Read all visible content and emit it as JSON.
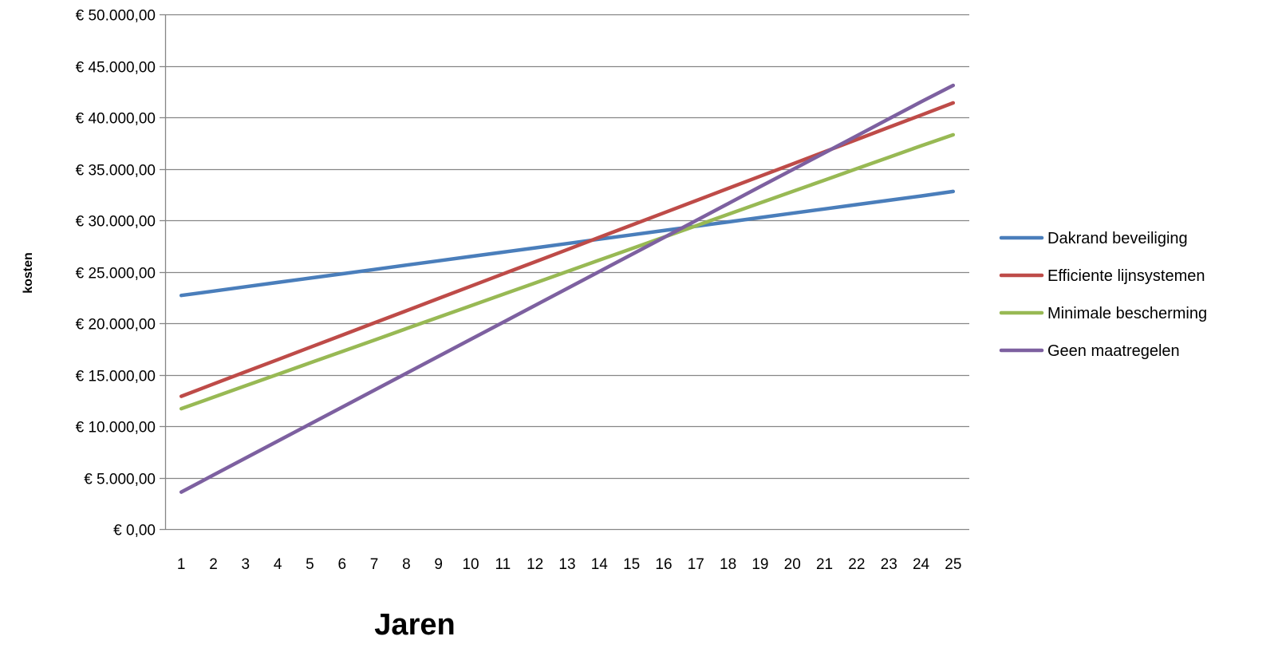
{
  "chart_data": {
    "type": "line",
    "title": "",
    "xlabel": "Jaren",
    "ylabel": "kosten",
    "ylim": [
      0,
      50000
    ],
    "yticks": [
      0,
      5000,
      10000,
      15000,
      20000,
      25000,
      30000,
      35000,
      40000,
      45000,
      50000
    ],
    "ytick_labels": [
      "€ 0,00",
      "€ 5.000,00",
      "€ 10.000,00",
      "€ 15.000,00",
      "€ 20.000,00",
      "€ 25.000,00",
      "€ 30.000,00",
      "€ 35.000,00",
      "€ 40.000,00",
      "€ 45.000,00",
      "€ 50.000,00"
    ],
    "x": [
      1,
      2,
      3,
      4,
      5,
      6,
      7,
      8,
      9,
      10,
      11,
      12,
      13,
      14,
      15,
      16,
      17,
      18,
      19,
      20,
      21,
      22,
      23,
      24,
      25
    ],
    "grid": "horizontal",
    "legend_position": "right",
    "series": [
      {
        "name": "Dakrand beveiliging",
        "color": "#4a7ebb",
        "values": [
          22700,
          23120,
          23540,
          23960,
          24380,
          24800,
          25220,
          25640,
          26060,
          26480,
          26900,
          27320,
          27740,
          28160,
          28580,
          29000,
          29420,
          29840,
          30260,
          30680,
          31100,
          31520,
          31940,
          32360,
          32800
        ]
      },
      {
        "name": "Efficiente lijnsystemen",
        "color": "#be4b48",
        "values": [
          12900,
          14090,
          15280,
          16460,
          17650,
          18840,
          20030,
          21210,
          22400,
          23590,
          24780,
          25960,
          27150,
          28340,
          29530,
          30710,
          31900,
          33090,
          34280,
          35460,
          36650,
          37840,
          39030,
          40210,
          41400
        ]
      },
      {
        "name": "Minimale bescherming",
        "color": "#98b954",
        "values": [
          11700,
          12810,
          13920,
          15030,
          16140,
          17250,
          18360,
          19470,
          20580,
          21690,
          22800,
          23910,
          25020,
          26130,
          27240,
          28350,
          29460,
          30570,
          31680,
          32790,
          33900,
          35010,
          36120,
          37230,
          38300
        ]
      },
      {
        "name": "Geen maatregelen",
        "color": "#7d60a0",
        "values": [
          3600,
          5250,
          6900,
          8540,
          10190,
          11840,
          13490,
          15130,
          16780,
          18430,
          20080,
          21730,
          23370,
          25020,
          26670,
          28320,
          29960,
          31610,
          33260,
          34910,
          36550,
          38200,
          39850,
          41500,
          43100
        ]
      }
    ]
  }
}
